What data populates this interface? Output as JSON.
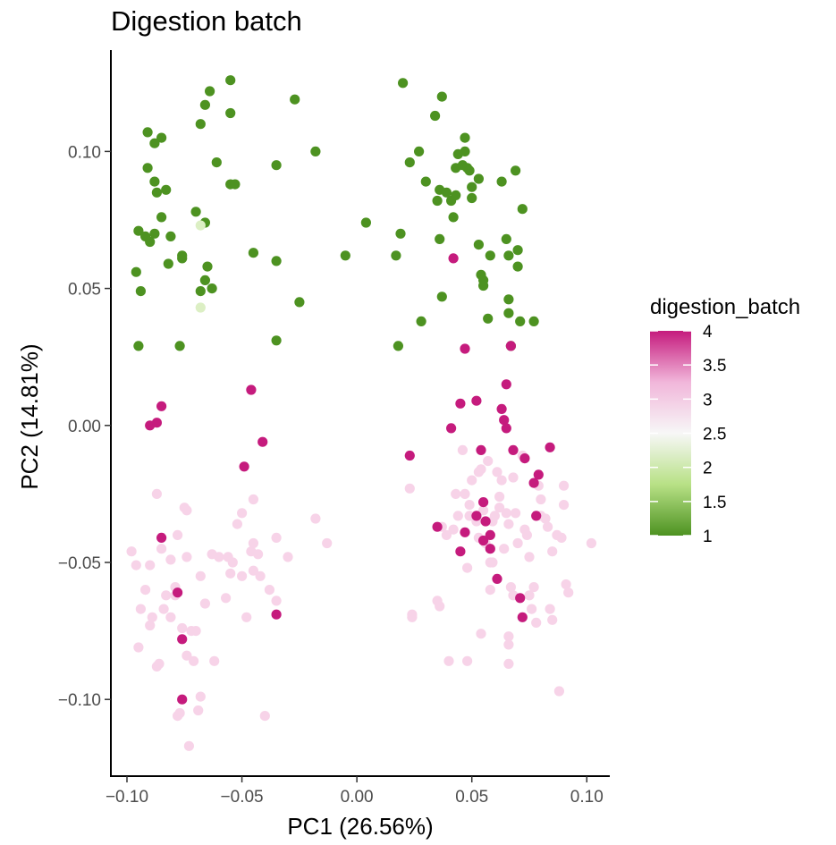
{
  "chart_data": {
    "type": "scatter",
    "title": "Digestion batch",
    "xlabel": "PC1 (26.56%)",
    "ylabel": "PC2 (14.81%)",
    "xlim": [
      -0.107,
      0.11
    ],
    "ylim": [
      -0.128,
      0.137
    ],
    "x_ticks": [
      -0.1,
      -0.05,
      0.0,
      0.05,
      0.1
    ],
    "x_tick_labels": [
      "−0.10",
      "−0.05",
      "0.00",
      "0.05",
      "0.10"
    ],
    "y_ticks": [
      -0.1,
      -0.05,
      0.0,
      0.05,
      0.1
    ],
    "y_tick_labels": [
      "−0.10",
      "−0.05",
      "0.00",
      "0.05",
      "0.10"
    ],
    "grid": false,
    "legend": {
      "title": "digestion_batch",
      "placement": "right",
      "type": "colorbar",
      "range": [
        1,
        4
      ],
      "ticks": [
        1,
        1.5,
        2,
        2.5,
        3,
        3.5,
        4
      ],
      "tick_labels": [
        "1",
        "1.5",
        "2",
        "2.5",
        "3",
        "3.5",
        "4"
      ],
      "colors": {
        "low": "#4d9221",
        "lowmid": "#b8e186",
        "mid": "#f7f7f7",
        "highmid": "#f1b6da",
        "high": "#c51b7d"
      }
    },
    "series": [
      {
        "group": "1",
        "color": "#4d9221",
        "points": [
          [
            -0.091,
            0.107
          ],
          [
            -0.085,
            0.105
          ],
          [
            -0.088,
            0.103
          ],
          [
            -0.091,
            0.094
          ],
          [
            -0.088,
            0.089
          ],
          [
            -0.087,
            0.085
          ],
          [
            -0.083,
            0.086
          ],
          [
            -0.095,
            0.071
          ],
          [
            -0.092,
            0.069
          ],
          [
            -0.09,
            0.067
          ],
          [
            -0.088,
            0.07
          ],
          [
            -0.085,
            0.076
          ],
          [
            -0.081,
            0.069
          ],
          [
            -0.082,
            0.059
          ],
          [
            -0.096,
            0.056
          ],
          [
            -0.094,
            0.049
          ],
          [
            -0.095,
            0.029
          ],
          [
            -0.077,
            0.029
          ],
          [
            -0.076,
            0.061
          ],
          [
            -0.07,
            0.078
          ],
          [
            -0.066,
            0.074
          ],
          [
            -0.065,
            0.058
          ],
          [
            -0.066,
            0.053
          ],
          [
            -0.063,
            0.05
          ],
          [
            -0.068,
            0.049
          ],
          [
            -0.068,
            0.11
          ],
          [
            -0.066,
            0.117
          ],
          [
            -0.064,
            0.122
          ],
          [
            -0.055,
            0.126
          ],
          [
            -0.055,
            0.114
          ],
          [
            -0.061,
            0.096
          ],
          [
            -0.055,
            0.088
          ],
          [
            -0.045,
            0.063
          ],
          [
            -0.035,
            0.095
          ],
          [
            -0.035,
            0.06
          ],
          [
            -0.035,
            0.031
          ],
          [
            -0.027,
            0.119
          ],
          [
            -0.025,
            0.045
          ],
          [
            -0.018,
            0.1
          ],
          [
            -0.005,
            0.062
          ],
          [
            0.004,
            0.074
          ],
          [
            0.017,
            0.062
          ],
          [
            0.018,
            0.029
          ],
          [
            0.02,
            0.125
          ],
          [
            0.019,
            0.07
          ],
          [
            0.023,
            0.096
          ],
          [
            0.027,
            0.1
          ],
          [
            0.028,
            0.038
          ],
          [
            0.03,
            0.089
          ],
          [
            0.034,
            0.113
          ],
          [
            0.035,
            0.082
          ],
          [
            0.036,
            0.086
          ],
          [
            0.037,
            0.12
          ],
          [
            0.036,
            0.068
          ],
          [
            0.037,
            0.047
          ],
          [
            0.039,
            0.085
          ],
          [
            0.041,
            0.082
          ],
          [
            0.042,
            0.076
          ],
          [
            0.043,
            0.094
          ],
          [
            0.043,
            0.084
          ],
          [
            0.044,
            0.099
          ],
          [
            0.046,
            0.095
          ],
          [
            0.047,
            0.105
          ],
          [
            0.047,
            0.1
          ],
          [
            0.048,
            0.094
          ],
          [
            0.049,
            0.093
          ],
          [
            0.05,
            0.087
          ],
          [
            0.05,
            0.083
          ],
          [
            0.053,
            0.066
          ],
          [
            0.053,
            0.09
          ],
          [
            0.054,
            0.055
          ],
          [
            0.055,
            0.053
          ],
          [
            0.055,
            0.051
          ],
          [
            0.057,
            0.039
          ],
          [
            0.058,
            0.062
          ],
          [
            0.063,
            0.089
          ],
          [
            0.065,
            0.068
          ],
          [
            0.066,
            0.062
          ],
          [
            0.066,
            0.046
          ],
          [
            0.066,
            0.041
          ],
          [
            0.067,
            0.029
          ],
          [
            0.069,
            0.093
          ],
          [
            0.07,
            0.064
          ],
          [
            0.07,
            0.058
          ],
          [
            0.071,
            0.038
          ],
          [
            0.072,
            0.079
          ],
          [
            0.077,
            0.038
          ],
          [
            -0.053,
            0.088
          ],
          [
            -0.076,
            0.062
          ]
        ]
      },
      {
        "group": "2",
        "color": "#dcefc4",
        "points": [
          [
            -0.068,
            0.073
          ],
          [
            -0.068,
            0.043
          ]
        ]
      },
      {
        "group": "3",
        "color": "#f7d3e8",
        "points": [
          [
            -0.098,
            -0.046
          ],
          [
            -0.096,
            -0.051
          ],
          [
            -0.092,
            -0.06
          ],
          [
            -0.094,
            -0.067
          ],
          [
            -0.095,
            -0.081
          ],
          [
            -0.09,
            -0.073
          ],
          [
            -0.089,
            -0.07
          ],
          [
            -0.087,
            -0.025
          ],
          [
            -0.09,
            -0.051
          ],
          [
            -0.087,
            -0.088
          ],
          [
            -0.086,
            -0.087
          ],
          [
            -0.085,
            -0.045
          ],
          [
            -0.084,
            -0.067
          ],
          [
            -0.083,
            -0.062
          ],
          [
            -0.081,
            -0.049
          ],
          [
            -0.081,
            -0.07
          ],
          [
            -0.079,
            -0.062
          ],
          [
            -0.079,
            -0.059
          ],
          [
            -0.078,
            -0.04
          ],
          [
            -0.078,
            -0.106
          ],
          [
            -0.077,
            -0.105
          ],
          [
            -0.076,
            -0.074
          ],
          [
            -0.075,
            -0.03
          ],
          [
            -0.074,
            -0.031
          ],
          [
            -0.074,
            -0.048
          ],
          [
            -0.073,
            -0.117
          ],
          [
            -0.072,
            -0.075
          ],
          [
            -0.074,
            -0.084
          ],
          [
            -0.071,
            -0.086
          ],
          [
            -0.069,
            -0.104
          ],
          [
            -0.07,
            -0.075
          ],
          [
            -0.068,
            -0.055
          ],
          [
            -0.068,
            -0.099
          ],
          [
            -0.066,
            -0.065
          ],
          [
            -0.063,
            -0.047
          ],
          [
            -0.062,
            -0.086
          ],
          [
            -0.06,
            -0.048
          ],
          [
            -0.057,
            -0.063
          ],
          [
            -0.055,
            -0.054
          ],
          [
            -0.056,
            -0.048
          ],
          [
            -0.054,
            -0.05
          ],
          [
            -0.052,
            -0.036
          ],
          [
            -0.05,
            -0.032
          ],
          [
            -0.05,
            -0.055
          ],
          [
            -0.048,
            -0.07
          ],
          [
            -0.046,
            -0.046
          ],
          [
            -0.045,
            -0.043
          ],
          [
            -0.045,
            -0.053
          ],
          [
            -0.045,
            -0.027
          ],
          [
            -0.043,
            -0.047
          ],
          [
            -0.042,
            -0.055
          ],
          [
            -0.04,
            -0.106
          ],
          [
            -0.038,
            -0.06
          ],
          [
            -0.035,
            -0.064
          ],
          [
            -0.035,
            -0.041
          ],
          [
            -0.03,
            -0.048
          ],
          [
            -0.018,
            -0.034
          ],
          [
            -0.013,
            -0.043
          ],
          [
            0.023,
            -0.023
          ],
          [
            0.024,
            -0.069
          ],
          [
            0.024,
            -0.07
          ],
          [
            0.037,
            -0.037
          ],
          [
            0.035,
            -0.064
          ],
          [
            0.036,
            -0.066
          ],
          [
            0.039,
            -0.04
          ],
          [
            0.04,
            -0.086
          ],
          [
            0.042,
            -0.038
          ],
          [
            0.043,
            -0.025
          ],
          [
            0.044,
            -0.033
          ],
          [
            0.046,
            -0.009
          ],
          [
            0.047,
            -0.025
          ],
          [
            0.048,
            -0.052
          ],
          [
            0.049,
            -0.029
          ],
          [
            0.049,
            -0.033
          ],
          [
            0.048,
            -0.086
          ],
          [
            0.05,
            -0.02
          ],
          [
            0.052,
            -0.035
          ],
          [
            0.053,
            -0.017
          ],
          [
            0.053,
            -0.041
          ],
          [
            0.054,
            -0.016
          ],
          [
            0.054,
            -0.076
          ],
          [
            0.055,
            -0.031
          ],
          [
            0.056,
            -0.043
          ],
          [
            0.057,
            -0.013
          ],
          [
            0.058,
            -0.05
          ],
          [
            0.058,
            -0.06
          ],
          [
            0.059,
            -0.05
          ],
          [
            0.059,
            -0.035
          ],
          [
            0.06,
            -0.033
          ],
          [
            0.061,
            -0.017
          ],
          [
            0.062,
            -0.03
          ],
          [
            0.062,
            -0.026
          ],
          [
            0.063,
            -0.02
          ],
          [
            0.064,
            -0.045
          ],
          [
            0.065,
            -0.032
          ],
          [
            0.066,
            -0.036
          ],
          [
            0.066,
            -0.077
          ],
          [
            0.066,
            -0.087
          ],
          [
            0.066,
            -0.08
          ],
          [
            0.067,
            -0.059
          ],
          [
            0.068,
            -0.019
          ],
          [
            0.068,
            -0.062
          ],
          [
            0.069,
            -0.032
          ],
          [
            0.07,
            -0.043
          ],
          [
            0.072,
            -0.011
          ],
          [
            0.073,
            -0.038
          ],
          [
            0.074,
            -0.04
          ],
          [
            0.075,
            -0.048
          ],
          [
            0.075,
            -0.062
          ],
          [
            0.076,
            -0.067
          ],
          [
            0.077,
            -0.059
          ],
          [
            0.078,
            -0.072
          ],
          [
            0.079,
            -0.022
          ],
          [
            0.08,
            -0.033
          ],
          [
            0.08,
            -0.027
          ],
          [
            0.082,
            -0.034
          ],
          [
            0.083,
            -0.037
          ],
          [
            0.084,
            -0.067
          ],
          [
            0.085,
            -0.046
          ],
          [
            0.085,
            -0.071
          ],
          [
            0.087,
            -0.04
          ],
          [
            0.088,
            -0.097
          ],
          [
            0.089,
            -0.041
          ],
          [
            0.09,
            -0.029
          ],
          [
            0.09,
            -0.022
          ],
          [
            0.091,
            -0.058
          ],
          [
            0.092,
            -0.061
          ],
          [
            0.102,
            -0.043
          ]
        ]
      },
      {
        "group": "4",
        "color": "#c51b7d",
        "points": [
          [
            -0.09,
            0.0
          ],
          [
            -0.087,
            0.001
          ],
          [
            -0.085,
            0.007
          ],
          [
            -0.085,
            -0.041
          ],
          [
            -0.078,
            -0.061
          ],
          [
            -0.076,
            -0.078
          ],
          [
            -0.076,
            -0.1
          ],
          [
            -0.046,
            0.013
          ],
          [
            -0.049,
            -0.015
          ],
          [
            -0.041,
            -0.006
          ],
          [
            -0.035,
            -0.069
          ],
          [
            0.023,
            -0.011
          ],
          [
            0.035,
            -0.037
          ],
          [
            0.041,
            -0.001
          ],
          [
            0.042,
            0.061
          ],
          [
            0.045,
            -0.046
          ],
          [
            0.045,
            0.008
          ],
          [
            0.047,
            0.028
          ],
          [
            0.047,
            -0.039
          ],
          [
            0.052,
            0.009
          ],
          [
            0.052,
            -0.033
          ],
          [
            0.054,
            -0.009
          ],
          [
            0.055,
            -0.028
          ],
          [
            0.055,
            -0.042
          ],
          [
            0.056,
            -0.035
          ],
          [
            0.058,
            -0.04
          ],
          [
            0.061,
            -0.056
          ],
          [
            0.063,
            0.006
          ],
          [
            0.064,
            0.002
          ],
          [
            0.065,
            0.015
          ],
          [
            0.065,
            -0.001
          ],
          [
            0.067,
            0.029
          ],
          [
            0.068,
            -0.009
          ],
          [
            0.071,
            -0.063
          ],
          [
            0.072,
            -0.07
          ],
          [
            0.073,
            -0.012
          ],
          [
            0.077,
            -0.021
          ],
          [
            0.078,
            -0.033
          ],
          [
            0.079,
            -0.018
          ],
          [
            0.084,
            -0.008
          ],
          [
            0.058,
            -0.045
          ]
        ]
      }
    ]
  }
}
